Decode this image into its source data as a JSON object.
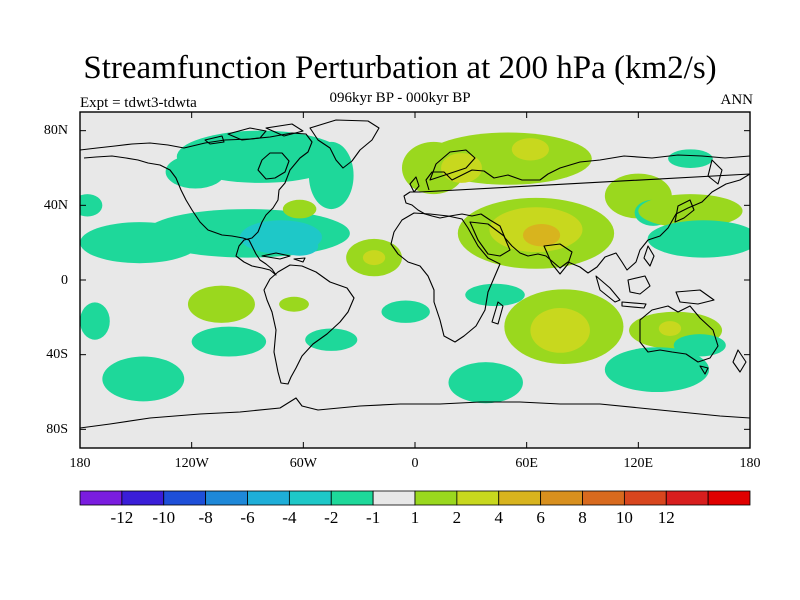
{
  "title": "Streamfunction Perturbation at 200 hPa (km2/s)",
  "subtitle": "096kyr BP - 000kyr BP",
  "left_label": "Expt = tdwt3-tdwta",
  "right_label": "ANN",
  "lat_ticks": [
    "80N",
    "40N",
    "0",
    "40S",
    "80S"
  ],
  "lon_ticks": [
    "180",
    "120W",
    "60W",
    "0",
    "60E",
    "120E",
    "180"
  ],
  "colorbar": {
    "colors": [
      "#7a1ddf",
      "#3a1ed8",
      "#1e4fd8",
      "#1e88d8",
      "#1eaed8",
      "#1ec8c8",
      "#1ed89a",
      "#e8e8e8",
      "#9ad81e",
      "#c8d81e",
      "#d8b41e",
      "#d8901e",
      "#d86a1e",
      "#d8461e",
      "#d81e1e",
      "#e00000"
    ],
    "labels": [
      "-12",
      "-10",
      "-8",
      "-6",
      "-4",
      "-2",
      "-1",
      "1",
      "2",
      "4",
      "6",
      "8",
      "10",
      "12"
    ]
  },
  "map": {
    "background": "#e8e8e8",
    "blobs": [
      {
        "color": "#1ed89a",
        "lon": -83,
        "lat": 66,
        "rx": 45,
        "ry": 14
      },
      {
        "color": "#1ed89a",
        "lon": -118,
        "lat": 58,
        "rx": 16,
        "ry": 9
      },
      {
        "color": "#1ed89a",
        "lon": -45,
        "lat": 56,
        "rx": 12,
        "ry": 18
      },
      {
        "color": "#1ed89a",
        "lon": -90,
        "lat": 25,
        "rx": 55,
        "ry": 13
      },
      {
        "color": "#1ed89a",
        "lon": -148,
        "lat": 20,
        "rx": 32,
        "ry": 11
      },
      {
        "color": "#1ec8c8",
        "lon": -72,
        "lat": 23,
        "rx": 22,
        "ry": 9
      },
      {
        "color": "#1ec8c8",
        "lon": -62,
        "lat": 18,
        "rx": 10,
        "ry": 5
      },
      {
        "color": "#9ad81e",
        "lon": -62,
        "lat": 38,
        "rx": 9,
        "ry": 5
      },
      {
        "color": "#9ad81e",
        "lon": 10,
        "lat": 60,
        "rx": 17,
        "ry": 14
      },
      {
        "color": "#9ad81e",
        "lon": 50,
        "lat": 65,
        "rx": 45,
        "ry": 14
      },
      {
        "color": "#c8d81e",
        "lon": 25,
        "lat": 60,
        "rx": 11,
        "ry": 8
      },
      {
        "color": "#c8d81e",
        "lon": 62,
        "lat": 70,
        "rx": 10,
        "ry": 6
      },
      {
        "color": "#1ed89a",
        "lon": -176,
        "lat": 40,
        "rx": 8,
        "ry": 6
      },
      {
        "color": "#9ad81e",
        "lon": 65,
        "lat": 25,
        "rx": 42,
        "ry": 19
      },
      {
        "color": "#c8d81e",
        "lon": 65,
        "lat": 27,
        "rx": 25,
        "ry": 12
      },
      {
        "color": "#d8b41e",
        "lon": 68,
        "lat": 24,
        "rx": 10,
        "ry": 6
      },
      {
        "color": "#9ad81e",
        "lon": -22,
        "lat": 12,
        "rx": 15,
        "ry": 10
      },
      {
        "color": "#c8d81e",
        "lon": -22,
        "lat": 12,
        "rx": 6,
        "ry": 4
      },
      {
        "color": "#9ad81e",
        "lon": 120,
        "lat": 45,
        "rx": 18,
        "ry": 12
      },
      {
        "color": "#1ed89a",
        "lon": 128,
        "lat": 36,
        "rx": 10,
        "ry": 7
      },
      {
        "color": "#9ad81e",
        "lon": 148,
        "lat": 37,
        "rx": 28,
        "ry": 9
      },
      {
        "color": "#1ed89a",
        "lon": 148,
        "lat": 65,
        "rx": 12,
        "ry": 5
      },
      {
        "color": "#1ed89a",
        "lon": 155,
        "lat": 22,
        "rx": 30,
        "ry": 10
      },
      {
        "color": "#9ad81e",
        "lon": -104,
        "lat": -13,
        "rx": 18,
        "ry": 10
      },
      {
        "color": "#9ad81e",
        "lon": -65,
        "lat": -13,
        "rx": 8,
        "ry": 4
      },
      {
        "color": "#1ed89a",
        "lon": -172,
        "lat": -22,
        "rx": 8,
        "ry": 10
      },
      {
        "color": "#1ed89a",
        "lon": -100,
        "lat": -33,
        "rx": 20,
        "ry": 8
      },
      {
        "color": "#1ed89a",
        "lon": -45,
        "lat": -32,
        "rx": 14,
        "ry": 6
      },
      {
        "color": "#1ed89a",
        "lon": -5,
        "lat": -17,
        "rx": 13,
        "ry": 6
      },
      {
        "color": "#1ed89a",
        "lon": 43,
        "lat": -8,
        "rx": 16,
        "ry": 6
      },
      {
        "color": "#9ad81e",
        "lon": 80,
        "lat": -25,
        "rx": 32,
        "ry": 20
      },
      {
        "color": "#c8d81e",
        "lon": 78,
        "lat": -27,
        "rx": 16,
        "ry": 12
      },
      {
        "color": "#9ad81e",
        "lon": 140,
        "lat": -27,
        "rx": 25,
        "ry": 10
      },
      {
        "color": "#c8d81e",
        "lon": 137,
        "lat": -26,
        "rx": 6,
        "ry": 4
      },
      {
        "color": "#1ed89a",
        "lon": 153,
        "lat": -35,
        "rx": 14,
        "ry": 6
      },
      {
        "color": "#1ed89a",
        "lon": -146,
        "lat": -53,
        "rx": 22,
        "ry": 12
      },
      {
        "color": "#1ed89a",
        "lon": 38,
        "lat": -55,
        "rx": 20,
        "ry": 11
      },
      {
        "color": "#1ed89a",
        "lon": 130,
        "lat": -48,
        "rx": 28,
        "ry": 12
      }
    ]
  }
}
